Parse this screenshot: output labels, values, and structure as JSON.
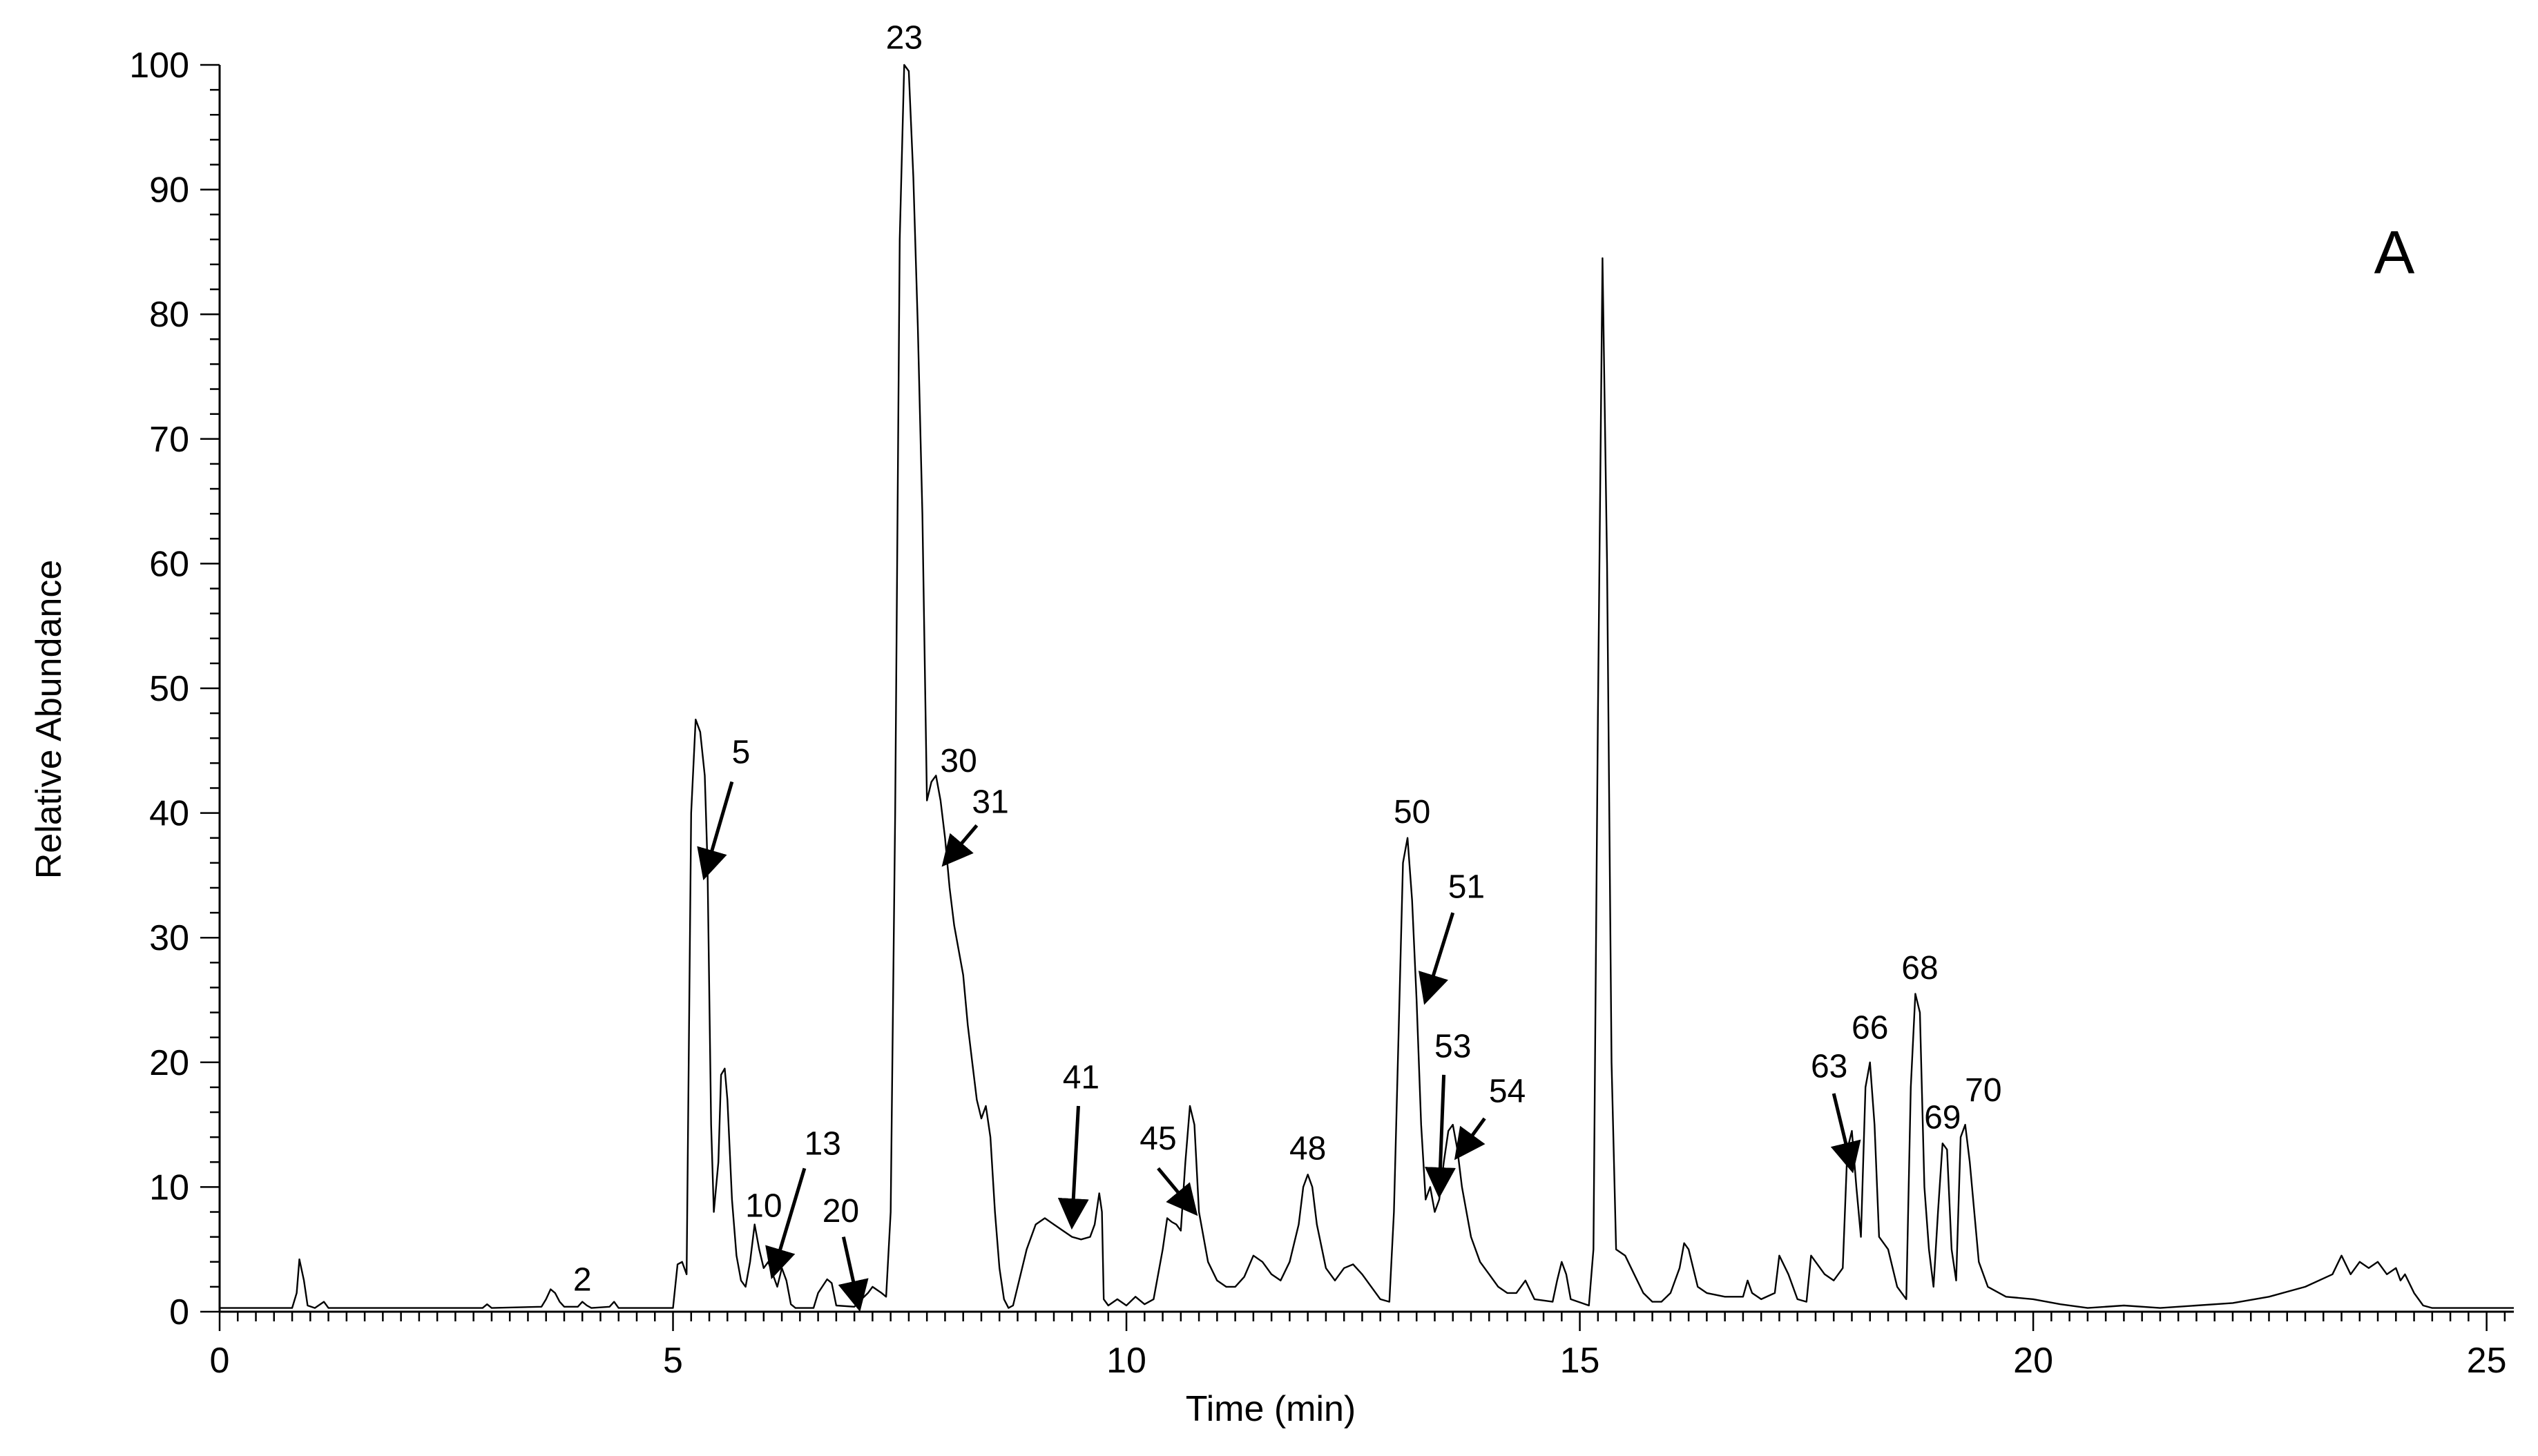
{
  "chart_data": {
    "type": "line",
    "title": "",
    "panel_label": "A",
    "xlabel": "Time (min)",
    "ylabel": "Relative Abundance",
    "xlim": [
      0,
      25.3
    ],
    "ylim": [
      0,
      100
    ],
    "xticks": [
      0,
      5,
      10,
      15,
      20,
      25
    ],
    "yticks": [
      0,
      10,
      20,
      30,
      40,
      50,
      60,
      70,
      80,
      90,
      100
    ],
    "grid": false,
    "series": [
      {
        "name": "",
        "points": [
          [
            0,
            0.3
          ],
          [
            0.8,
            0.3
          ],
          [
            0.85,
            1.5
          ],
          [
            0.88,
            4.2
          ],
          [
            0.93,
            2.5
          ],
          [
            0.97,
            0.5
          ],
          [
            1.05,
            0.3
          ],
          [
            1.15,
            0.8
          ],
          [
            1.2,
            0.3
          ],
          [
            2.9,
            0.3
          ],
          [
            2.95,
            0.6
          ],
          [
            3.0,
            0.3
          ],
          [
            3.55,
            0.4
          ],
          [
            3.6,
            1.0
          ],
          [
            3.65,
            1.8
          ],
          [
            3.7,
            1.5
          ],
          [
            3.75,
            0.8
          ],
          [
            3.8,
            0.4
          ],
          [
            3.95,
            0.4
          ],
          [
            4.0,
            0.8
          ],
          [
            4.05,
            0.5
          ],
          [
            4.1,
            0.3
          ],
          [
            4.3,
            0.4
          ],
          [
            4.35,
            0.8
          ],
          [
            4.4,
            0.3
          ],
          [
            5.0,
            0.3
          ],
          [
            5.05,
            3.8
          ],
          [
            5.1,
            4.0
          ],
          [
            5.15,
            3.0
          ],
          [
            5.2,
            40.0
          ],
          [
            5.25,
            47.5
          ],
          [
            5.3,
            46.5
          ],
          [
            5.35,
            43.0
          ],
          [
            5.38,
            36.0
          ],
          [
            5.42,
            15.0
          ],
          [
            5.45,
            8.0
          ],
          [
            5.5,
            12.0
          ],
          [
            5.53,
            19.0
          ],
          [
            5.57,
            19.5
          ],
          [
            5.6,
            17.0
          ],
          [
            5.65,
            9.0
          ],
          [
            5.7,
            4.5
          ],
          [
            5.75,
            2.5
          ],
          [
            5.8,
            2.0
          ],
          [
            5.85,
            4.0
          ],
          [
            5.9,
            7.0
          ],
          [
            5.95,
            5.0
          ],
          [
            6.0,
            3.5
          ],
          [
            6.05,
            4.0
          ],
          [
            6.1,
            3.0
          ],
          [
            6.15,
            2.0
          ],
          [
            6.2,
            3.5
          ],
          [
            6.25,
            2.5
          ],
          [
            6.3,
            0.6
          ],
          [
            6.35,
            0.3
          ],
          [
            6.55,
            0.3
          ],
          [
            6.6,
            1.5
          ],
          [
            6.7,
            2.6
          ],
          [
            6.75,
            2.3
          ],
          [
            6.8,
            0.5
          ],
          [
            7.0,
            0.4
          ],
          [
            7.05,
            0.8
          ],
          [
            7.15,
            1.5
          ],
          [
            7.2,
            2.0
          ],
          [
            7.3,
            1.5
          ],
          [
            7.35,
            1.2
          ],
          [
            7.4,
            8.0
          ],
          [
            7.45,
            40.0
          ],
          [
            7.5,
            86.0
          ],
          [
            7.55,
            100.0
          ],
          [
            7.6,
            99.5
          ],
          [
            7.65,
            91.0
          ],
          [
            7.7,
            79.0
          ],
          [
            7.75,
            64.0
          ],
          [
            7.8,
            41.0
          ],
          [
            7.85,
            42.5
          ],
          [
            7.9,
            43.0
          ],
          [
            7.95,
            41.0
          ],
          [
            8.0,
            38.0
          ],
          [
            8.05,
            34.0
          ],
          [
            8.1,
            31.0
          ],
          [
            8.2,
            27.0
          ],
          [
            8.25,
            23.0
          ],
          [
            8.3,
            20.0
          ],
          [
            8.35,
            17.0
          ],
          [
            8.4,
            15.5
          ],
          [
            8.45,
            16.5
          ],
          [
            8.5,
            14.0
          ],
          [
            8.55,
            8.0
          ],
          [
            8.6,
            3.5
          ],
          [
            8.65,
            1.0
          ],
          [
            8.7,
            0.3
          ],
          [
            8.75,
            0.5
          ],
          [
            8.8,
            2.0
          ],
          [
            8.9,
            5.0
          ],
          [
            9.0,
            7.0
          ],
          [
            9.1,
            7.5
          ],
          [
            9.2,
            7.0
          ],
          [
            9.3,
            6.5
          ],
          [
            9.4,
            6.0
          ],
          [
            9.5,
            5.8
          ],
          [
            9.6,
            6.0
          ],
          [
            9.65,
            7.0
          ],
          [
            9.7,
            9.5
          ],
          [
            9.73,
            8.0
          ],
          [
            9.75,
            1.0
          ],
          [
            9.8,
            0.5
          ],
          [
            9.9,
            1.0
          ],
          [
            10.0,
            0.5
          ],
          [
            10.1,
            1.2
          ],
          [
            10.2,
            0.6
          ],
          [
            10.3,
            1.0
          ],
          [
            10.4,
            5.0
          ],
          [
            10.45,
            7.5
          ],
          [
            10.5,
            7.2
          ],
          [
            10.55,
            7.0
          ],
          [
            10.6,
            6.5
          ],
          [
            10.65,
            12.0
          ],
          [
            10.7,
            16.5
          ],
          [
            10.75,
            15.0
          ],
          [
            10.8,
            8.0
          ],
          [
            10.9,
            4.0
          ],
          [
            11.0,
            2.5
          ],
          [
            11.1,
            2.0
          ],
          [
            11.2,
            2.0
          ],
          [
            11.3,
            2.8
          ],
          [
            11.4,
            4.5
          ],
          [
            11.5,
            4.0
          ],
          [
            11.6,
            3.0
          ],
          [
            11.7,
            2.5
          ],
          [
            11.8,
            4.0
          ],
          [
            11.9,
            7.0
          ],
          [
            11.95,
            10.0
          ],
          [
            12.0,
            11.0
          ],
          [
            12.05,
            10.0
          ],
          [
            12.1,
            7.0
          ],
          [
            12.2,
            3.5
          ],
          [
            12.3,
            2.5
          ],
          [
            12.4,
            3.5
          ],
          [
            12.5,
            3.8
          ],
          [
            12.6,
            3.0
          ],
          [
            12.7,
            2.0
          ],
          [
            12.8,
            1.0
          ],
          [
            12.9,
            0.8
          ],
          [
            12.95,
            8.0
          ],
          [
            13.0,
            22.0
          ],
          [
            13.05,
            36.0
          ],
          [
            13.1,
            38.0
          ],
          [
            13.15,
            33.0
          ],
          [
            13.2,
            25.0
          ],
          [
            13.25,
            15.0
          ],
          [
            13.3,
            9.0
          ],
          [
            13.35,
            10.0
          ],
          [
            13.4,
            8.0
          ],
          [
            13.45,
            9.0
          ],
          [
            13.5,
            12.0
          ],
          [
            13.55,
            14.5
          ],
          [
            13.6,
            15.0
          ],
          [
            13.65,
            13.0
          ],
          [
            13.7,
            10.0
          ],
          [
            13.8,
            6.0
          ],
          [
            13.9,
            4.0
          ],
          [
            14.0,
            3.0
          ],
          [
            14.1,
            2.0
          ],
          [
            14.2,
            1.5
          ],
          [
            14.3,
            1.5
          ],
          [
            14.4,
            2.5
          ],
          [
            14.5,
            1.0
          ],
          [
            14.7,
            0.8
          ],
          [
            14.75,
            2.5
          ],
          [
            14.8,
            4.0
          ],
          [
            14.85,
            3.0
          ],
          [
            14.9,
            1.0
          ],
          [
            15.1,
            0.5
          ],
          [
            15.15,
            5.0
          ],
          [
            15.2,
            48.0
          ],
          [
            15.25,
            84.5
          ],
          [
            15.3,
            60.0
          ],
          [
            15.35,
            20.0
          ],
          [
            15.4,
            5.0
          ],
          [
            15.5,
            4.5
          ],
          [
            15.6,
            3.0
          ],
          [
            15.7,
            1.5
          ],
          [
            15.8,
            0.8
          ],
          [
            15.9,
            0.8
          ],
          [
            16.0,
            1.5
          ],
          [
            16.1,
            3.5
          ],
          [
            16.15,
            5.5
          ],
          [
            16.2,
            5.0
          ],
          [
            16.3,
            2.0
          ],
          [
            16.4,
            1.5
          ],
          [
            16.6,
            1.2
          ],
          [
            16.8,
            1.2
          ],
          [
            16.85,
            2.5
          ],
          [
            16.9,
            1.5
          ],
          [
            17.0,
            1.0
          ],
          [
            17.15,
            1.5
          ],
          [
            17.2,
            4.5
          ],
          [
            17.3,
            3.0
          ],
          [
            17.4,
            1.0
          ],
          [
            17.5,
            0.8
          ],
          [
            17.55,
            4.5
          ],
          [
            17.6,
            4.0
          ],
          [
            17.7,
            3.0
          ],
          [
            17.8,
            2.5
          ],
          [
            17.9,
            3.5
          ],
          [
            17.95,
            13.0
          ],
          [
            18.0,
            14.5
          ],
          [
            18.05,
            10.0
          ],
          [
            18.1,
            6.0
          ],
          [
            18.15,
            18.0
          ],
          [
            18.2,
            20.0
          ],
          [
            18.25,
            15.0
          ],
          [
            18.3,
            6.0
          ],
          [
            18.4,
            5.0
          ],
          [
            18.5,
            2.0
          ],
          [
            18.6,
            1.0
          ],
          [
            18.65,
            18.0
          ],
          [
            18.7,
            25.5
          ],
          [
            18.75,
            24.0
          ],
          [
            18.8,
            10.0
          ],
          [
            18.85,
            5.0
          ],
          [
            18.9,
            2.0
          ],
          [
            18.95,
            8.0
          ],
          [
            19.0,
            13.5
          ],
          [
            19.05,
            13.0
          ],
          [
            19.1,
            5.0
          ],
          [
            19.15,
            2.5
          ],
          [
            19.2,
            14.0
          ],
          [
            19.25,
            15.0
          ],
          [
            19.3,
            12.0
          ],
          [
            19.4,
            4.0
          ],
          [
            19.5,
            2.0
          ],
          [
            19.7,
            1.2
          ],
          [
            20.0,
            1.0
          ],
          [
            20.3,
            0.6
          ],
          [
            20.6,
            0.3
          ],
          [
            21.0,
            0.5
          ],
          [
            21.4,
            0.3
          ],
          [
            21.8,
            0.5
          ],
          [
            22.2,
            0.7
          ],
          [
            22.6,
            1.2
          ],
          [
            23.0,
            2.0
          ],
          [
            23.3,
            3.0
          ],
          [
            23.4,
            4.5
          ],
          [
            23.5,
            3.0
          ],
          [
            23.6,
            4.0
          ],
          [
            23.7,
            3.5
          ],
          [
            23.8,
            4.0
          ],
          [
            23.9,
            3.0
          ],
          [
            24.0,
            3.5
          ],
          [
            24.05,
            2.5
          ],
          [
            24.1,
            3.0
          ],
          [
            24.2,
            1.5
          ],
          [
            24.3,
            0.5
          ],
          [
            24.4,
            0.3
          ],
          [
            25.3,
            0.3
          ]
        ]
      }
    ],
    "annotations": [
      {
        "label": "2",
        "text_x": 4.0,
        "text_y": 1.7,
        "arrow": null
      },
      {
        "label": "5",
        "text_x": 5.75,
        "text_y": 44.0,
        "arrow": [
          [
            5.65,
            42.5
          ],
          [
            5.35,
            35.0
          ]
        ]
      },
      {
        "label": "10",
        "text_x": 6.0,
        "text_y": 7.6,
        "arrow": null
      },
      {
        "label": "13",
        "text_x": 6.65,
        "text_y": 12.6,
        "arrow": [
          [
            6.45,
            11.5
          ],
          [
            6.1,
            3.0
          ]
        ]
      },
      {
        "label": "20",
        "text_x": 6.85,
        "text_y": 7.2,
        "arrow": [
          [
            6.88,
            6.0
          ],
          [
            7.05,
            0.4
          ]
        ]
      },
      {
        "label": "23",
        "text_x": 7.55,
        "text_y": 101.3,
        "arrow": null
      },
      {
        "label": "30",
        "text_x": 8.15,
        "text_y": 43.3,
        "arrow": null
      },
      {
        "label": "31",
        "text_x": 8.5,
        "text_y": 40.0,
        "arrow": [
          [
            8.35,
            39.0
          ],
          [
            8.0,
            36.0
          ]
        ]
      },
      {
        "label": "41",
        "text_x": 9.5,
        "text_y": 17.9,
        "arrow": [
          [
            9.47,
            16.5
          ],
          [
            9.4,
            7.0
          ]
        ]
      },
      {
        "label": "45",
        "text_x": 10.35,
        "text_y": 13.0,
        "arrow": [
          [
            10.35,
            11.5
          ],
          [
            10.75,
            8.0
          ]
        ]
      },
      {
        "label": "48",
        "text_x": 12.0,
        "text_y": 12.2,
        "arrow": null
      },
      {
        "label": "50",
        "text_x": 13.15,
        "text_y": 39.2,
        "arrow": null
      },
      {
        "label": "51",
        "text_x": 13.75,
        "text_y": 33.2,
        "arrow": [
          [
            13.6,
            32.0
          ],
          [
            13.3,
            25.0
          ]
        ]
      },
      {
        "label": "53",
        "text_x": 13.6,
        "text_y": 20.4,
        "arrow": [
          [
            13.5,
            19.0
          ],
          [
            13.45,
            9.5
          ]
        ]
      },
      {
        "label": "54",
        "text_x": 14.2,
        "text_y": 16.8,
        "arrow": [
          [
            13.95,
            15.5
          ],
          [
            13.65,
            12.5
          ]
        ]
      },
      {
        "label": "63",
        "text_x": 17.75,
        "text_y": 18.8,
        "arrow": [
          [
            17.8,
            17.5
          ],
          [
            18.0,
            11.5
          ]
        ]
      },
      {
        "label": "66",
        "text_x": 18.2,
        "text_y": 21.9,
        "arrow": null
      },
      {
        "label": "68",
        "text_x": 18.75,
        "text_y": 26.7,
        "arrow": null
      },
      {
        "label": "69",
        "text_x": 19.0,
        "text_y": 14.7,
        "arrow": null
      },
      {
        "label": "70",
        "text_x": 19.45,
        "text_y": 16.9,
        "arrow": null
      }
    ]
  }
}
